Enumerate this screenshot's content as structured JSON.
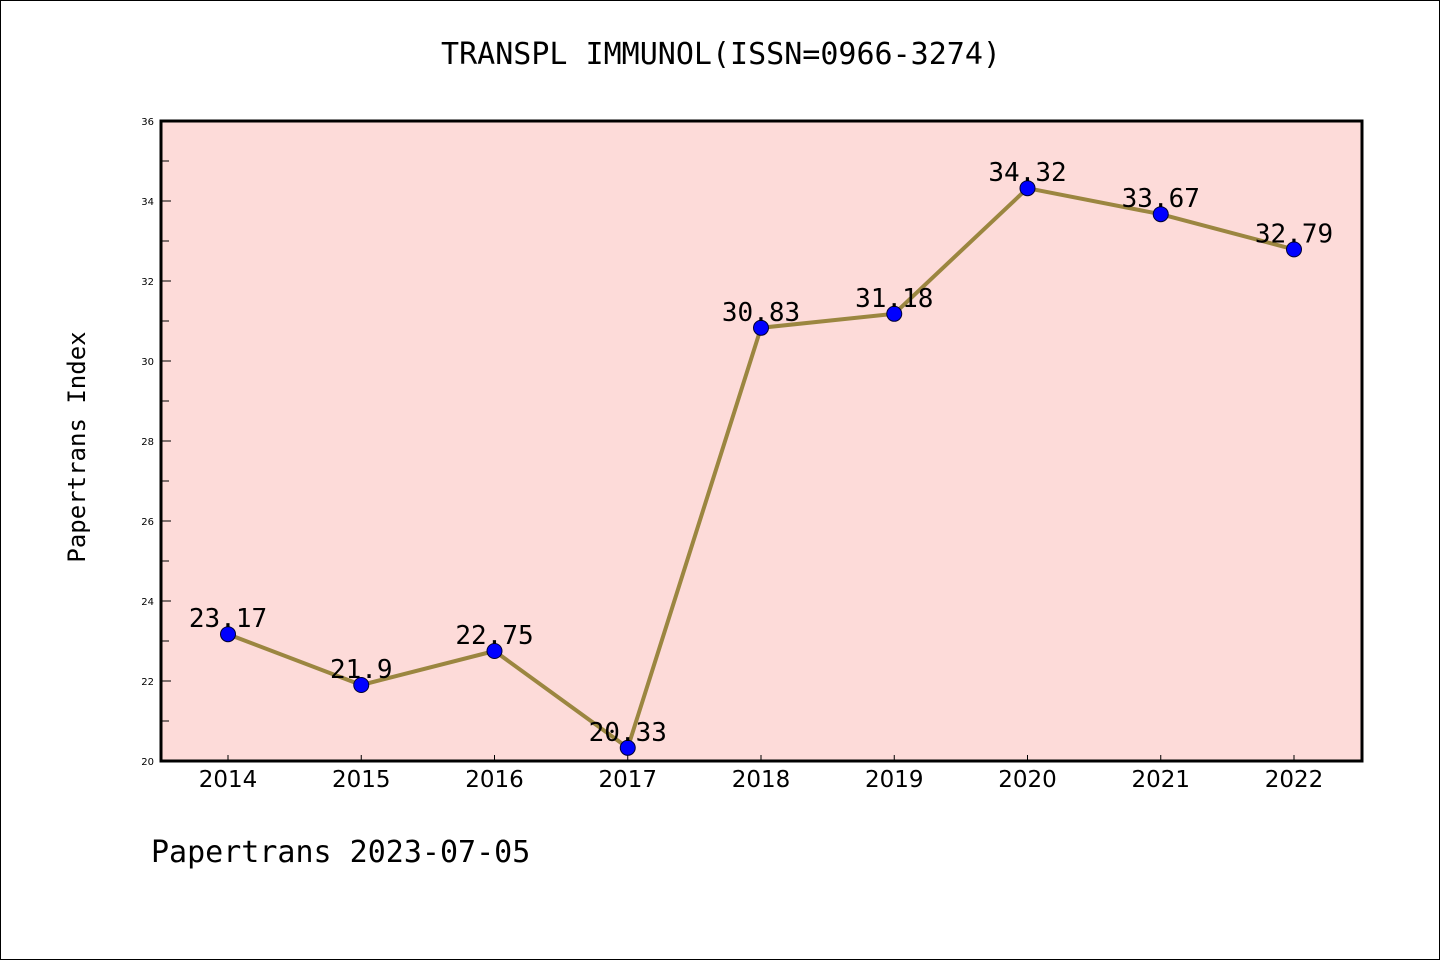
{
  "chart_data": {
    "type": "line",
    "title": "TRANSPL IMMUNOL(ISSN=0966-3274)",
    "xlabel": "",
    "ylabel": "Papertrans Index",
    "categories": [
      "2014",
      "2015",
      "2016",
      "2017",
      "2018",
      "2019",
      "2020",
      "2021",
      "2022"
    ],
    "series": [
      {
        "values": [
          23.17,
          21.9,
          22.75,
          20.33,
          30.83,
          31.18,
          34.32,
          33.67,
          32.79
        ]
      }
    ],
    "data_labels": [
      "23.17",
      "21.9",
      "22.75",
      "20.33",
      "30.83",
      "31.18",
      "34.32",
      "33.67",
      "32.79"
    ],
    "ylim": [
      20,
      36
    ],
    "yticks": [
      "20",
      "22",
      "24",
      "26",
      "28",
      "30",
      "32",
      "34",
      "36"
    ],
    "grid": false,
    "colors": {
      "plot_background": "#fddbd9",
      "line": "#9b8640",
      "marker": "#0000ff"
    }
  },
  "footer": "Papertrans 2023-07-05"
}
